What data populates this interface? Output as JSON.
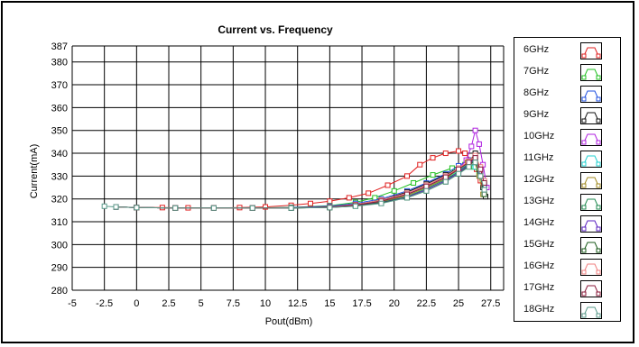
{
  "chart_data": {
    "type": "line",
    "title": "Current vs. Frequency",
    "xlabel": "Pout(dBm)",
    "ylabel": "Current(mA)",
    "xlim": [
      -5,
      28.5
    ],
    "ylim": [
      280,
      387
    ],
    "xticks": [
      "-5",
      "-2.5",
      "0",
      "2.5",
      "5",
      "7.5",
      "10",
      "12.5",
      "15",
      "17.5",
      "20",
      "22.5",
      "25",
      "27.5"
    ],
    "yticks": [
      "280",
      "290",
      "300",
      "310",
      "320",
      "330",
      "340",
      "350",
      "360",
      "370",
      "380",
      "387"
    ],
    "grid": true,
    "legend_position": "right",
    "series": [
      {
        "name": "6GHz",
        "color": "#e02020",
        "points": [
          [
            -1.6,
            316.5
          ],
          [
            0,
            316.3
          ],
          [
            2,
            316.2
          ],
          [
            4,
            316.1
          ],
          [
            6,
            316
          ],
          [
            8,
            316.2
          ],
          [
            10,
            316.5
          ],
          [
            12,
            317.2
          ],
          [
            13.5,
            318
          ],
          [
            15,
            319
          ],
          [
            16.5,
            320.5
          ],
          [
            18,
            322.5
          ],
          [
            19.5,
            326
          ],
          [
            21,
            330
          ],
          [
            22,
            335
          ],
          [
            23,
            338
          ],
          [
            24,
            340
          ],
          [
            25,
            341
          ],
          [
            25.5,
            340
          ],
          [
            26,
            337
          ],
          [
            26.4,
            333
          ],
          [
            26.7,
            328
          ],
          [
            27,
            323
          ]
        ]
      },
      {
        "name": "7GHz",
        "color": "#20c020",
        "points": [
          [
            -1.6,
            316.5
          ],
          [
            0,
            316.2
          ],
          [
            3,
            316
          ],
          [
            6,
            316
          ],
          [
            9,
            316
          ],
          [
            12,
            316.3
          ],
          [
            15,
            317
          ],
          [
            17,
            318.5
          ],
          [
            18.5,
            320.5
          ],
          [
            20,
            323.5
          ],
          [
            21.5,
            327
          ],
          [
            23,
            330.5
          ],
          [
            24.5,
            333.5
          ],
          [
            25.5,
            335
          ],
          [
            26.2,
            334
          ],
          [
            26.6,
            331
          ],
          [
            27,
            327
          ]
        ]
      },
      {
        "name": "8GHz",
        "color": "#2050e0",
        "points": [
          [
            -1.6,
            316.5
          ],
          [
            0,
            316.2
          ],
          [
            3,
            316
          ],
          [
            6,
            316
          ],
          [
            9,
            316
          ],
          [
            12,
            316.2
          ],
          [
            15,
            316.8
          ],
          [
            17,
            318
          ],
          [
            19,
            320
          ],
          [
            21,
            323.5
          ],
          [
            22.5,
            327
          ],
          [
            24,
            331
          ],
          [
            25,
            334.5
          ],
          [
            25.8,
            337
          ],
          [
            26.3,
            336
          ],
          [
            26.7,
            331
          ],
          [
            27,
            326
          ]
        ]
      },
      {
        "name": "9GHz",
        "color": "#111111",
        "points": [
          [
            -1.6,
            316.5
          ],
          [
            0,
            316.2
          ],
          [
            3,
            316
          ],
          [
            6,
            316
          ],
          [
            9,
            316
          ],
          [
            12,
            316.1
          ],
          [
            15,
            316.5
          ],
          [
            17,
            317.5
          ],
          [
            19,
            319.5
          ],
          [
            21,
            323
          ],
          [
            22.5,
            326.5
          ],
          [
            24,
            330.5
          ],
          [
            25,
            333.5
          ],
          [
            25.8,
            336
          ],
          [
            26.3,
            340
          ],
          [
            26.6,
            333
          ],
          [
            26.9,
            325
          ],
          [
            27.1,
            321
          ]
        ]
      },
      {
        "name": "10GHz",
        "color": "#b020e0",
        "points": [
          [
            -1.6,
            316.5
          ],
          [
            0,
            316.2
          ],
          [
            3,
            316
          ],
          [
            6,
            316
          ],
          [
            9,
            316
          ],
          [
            12,
            316.1
          ],
          [
            15,
            316.5
          ],
          [
            17,
            317.5
          ],
          [
            19,
            319
          ],
          [
            21,
            322
          ],
          [
            22.5,
            325.5
          ],
          [
            24,
            329.5
          ],
          [
            25,
            333
          ],
          [
            25.6,
            337
          ],
          [
            26,
            343
          ],
          [
            26.3,
            350
          ],
          [
            26.6,
            344
          ],
          [
            26.9,
            335
          ],
          [
            27.2,
            325
          ]
        ]
      },
      {
        "name": "11GHz",
        "color": "#20d0d0",
        "points": [
          [
            -1.6,
            316.5
          ],
          [
            0,
            316.2
          ],
          [
            3,
            316
          ],
          [
            6,
            316
          ],
          [
            9,
            316
          ],
          [
            12,
            316
          ],
          [
            15,
            316.4
          ],
          [
            17,
            317.3
          ],
          [
            19,
            318.8
          ],
          [
            21,
            321.5
          ],
          [
            22.5,
            325
          ],
          [
            24,
            329
          ],
          [
            25,
            332.5
          ],
          [
            25.8,
            335.5
          ],
          [
            26.3,
            334
          ],
          [
            26.7,
            330
          ],
          [
            27,
            326
          ]
        ]
      },
      {
        "name": "12GHz",
        "color": "#a08a20",
        "points": [
          [
            -1.6,
            316.5
          ],
          [
            0,
            316.2
          ],
          [
            3,
            316
          ],
          [
            6,
            316
          ],
          [
            9,
            316
          ],
          [
            12,
            316
          ],
          [
            15,
            316.3
          ],
          [
            17,
            317.2
          ],
          [
            19,
            318.7
          ],
          [
            21,
            321.5
          ],
          [
            22.5,
            325
          ],
          [
            24,
            329
          ],
          [
            25,
            333
          ],
          [
            25.7,
            336
          ],
          [
            26.2,
            337
          ],
          [
            26.6,
            330
          ],
          [
            26.9,
            322
          ]
        ]
      },
      {
        "name": "13GHz",
        "color": "#208a50",
        "points": [
          [
            -1.6,
            316.5
          ],
          [
            0,
            316.2
          ],
          [
            3,
            316
          ],
          [
            6,
            316
          ],
          [
            9,
            316
          ],
          [
            12,
            316
          ],
          [
            15,
            316.3
          ],
          [
            17,
            317
          ],
          [
            19,
            318.5
          ],
          [
            21,
            321
          ],
          [
            22.5,
            324.5
          ],
          [
            24,
            328.5
          ],
          [
            25,
            332
          ],
          [
            25.8,
            335.5
          ],
          [
            26.3,
            337
          ],
          [
            26.7,
            331
          ],
          [
            27,
            325
          ]
        ]
      },
      {
        "name": "14GHz",
        "color": "#5a20c0",
        "points": [
          [
            -1.6,
            316.5
          ],
          [
            0,
            316.2
          ],
          [
            3,
            316
          ],
          [
            6,
            316
          ],
          [
            9,
            316
          ],
          [
            12,
            316
          ],
          [
            15,
            316.3
          ],
          [
            17,
            317
          ],
          [
            19,
            318.3
          ],
          [
            21,
            320.8
          ],
          [
            22.5,
            324
          ],
          [
            24,
            328
          ],
          [
            25,
            331.5
          ],
          [
            25.8,
            335
          ],
          [
            26.3,
            338
          ],
          [
            26.7,
            332
          ],
          [
            27,
            326
          ]
        ]
      },
      {
        "name": "15GHz",
        "color": "#1a5a1a",
        "points": [
          [
            -1.6,
            316.5
          ],
          [
            0,
            316.2
          ],
          [
            3,
            316
          ],
          [
            6,
            316
          ],
          [
            9,
            316
          ],
          [
            12,
            316
          ],
          [
            15,
            316.2
          ],
          [
            17,
            316.9
          ],
          [
            19,
            318.2
          ],
          [
            21,
            320.5
          ],
          [
            22.5,
            323.5
          ],
          [
            24,
            327.5
          ],
          [
            25,
            331
          ],
          [
            25.8,
            334.5
          ],
          [
            26.3,
            337
          ],
          [
            26.7,
            330
          ],
          [
            27,
            322
          ]
        ]
      },
      {
        "name": "16GHz",
        "color": "#f08080",
        "points": [
          [
            -1.6,
            316.5
          ],
          [
            0,
            316.2
          ],
          [
            3,
            316
          ],
          [
            6,
            316
          ],
          [
            9,
            316
          ],
          [
            12,
            316.1
          ],
          [
            15,
            316.5
          ],
          [
            17,
            317.5
          ],
          [
            19,
            319.5
          ],
          [
            21,
            322.5
          ],
          [
            22.5,
            326
          ],
          [
            24,
            330
          ],
          [
            25,
            333.5
          ],
          [
            25.8,
            336.5
          ],
          [
            26.3,
            339
          ],
          [
            26.7,
            334
          ],
          [
            27,
            328
          ]
        ]
      },
      {
        "name": "17GHz",
        "color": "#8a1a3a",
        "points": [
          [
            -1.6,
            316.5
          ],
          [
            0,
            316.2
          ],
          [
            3,
            316
          ],
          [
            6,
            316
          ],
          [
            9,
            316
          ],
          [
            12,
            316.1
          ],
          [
            15,
            316.4
          ],
          [
            17,
            317.3
          ],
          [
            19,
            319
          ],
          [
            21,
            322
          ],
          [
            22.5,
            325.5
          ],
          [
            24,
            329.5
          ],
          [
            25,
            333
          ],
          [
            25.8,
            336
          ],
          [
            26.3,
            338
          ],
          [
            26.7,
            333
          ],
          [
            27,
            327
          ]
        ]
      },
      {
        "name": "18GHz",
        "color": "#5a9a8a",
        "points": [
          [
            -2.5,
            316.8
          ],
          [
            -1.6,
            316.5
          ],
          [
            0,
            316.2
          ],
          [
            3,
            316
          ],
          [
            6,
            316
          ],
          [
            9,
            316
          ],
          [
            12,
            316
          ],
          [
            15,
            316.2
          ],
          [
            17,
            316.8
          ],
          [
            19,
            318
          ],
          [
            21,
            320.5
          ],
          [
            22.5,
            323.5
          ],
          [
            24,
            327.5
          ],
          [
            25,
            331
          ],
          [
            25.8,
            334
          ],
          [
            26.3,
            336
          ],
          [
            26.7,
            330
          ],
          [
            27,
            324
          ]
        ]
      }
    ]
  }
}
